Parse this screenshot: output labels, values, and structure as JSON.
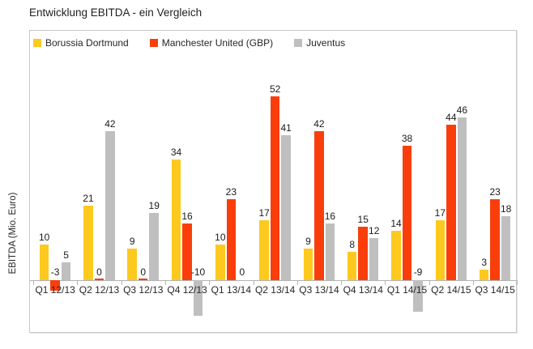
{
  "title": "Entwicklung EBITDA - ein Vergleich",
  "chart_data": {
    "type": "bar",
    "title": "Entwicklung EBITDA - ein Vergleich",
    "xlabel": "",
    "ylabel": "EBITDA (Mio. Euro)",
    "categories": [
      "Q1 12/13",
      "Q2 12/13",
      "Q3 12/13",
      "Q4 12/13",
      "Q1 13/14",
      "Q2 13/14",
      "Q3 13/14",
      "Q4 13/14",
      "Q1 14/15",
      "Q2 14/15",
      "Q3 14/15"
    ],
    "series": [
      {
        "name": "Borussia Dortmund",
        "color": "#fdc91e",
        "values": [
          10,
          21,
          9,
          34,
          10,
          17,
          9,
          8,
          14,
          17,
          3
        ]
      },
      {
        "name": "Manchester United (GBP)",
        "color": "#f93e0c",
        "values": [
          -3,
          0,
          0,
          16,
          23,
          52,
          42,
          15,
          38,
          44,
          23
        ]
      },
      {
        "name": "Juventus",
        "color": "#bfbfbf",
        "values": [
          5,
          42,
          19,
          -10,
          0,
          41,
          16,
          12,
          -9,
          46,
          18
        ]
      }
    ],
    "value_labels": [
      [
        "10",
        "21",
        "9",
        "34",
        "10",
        "17",
        "9",
        "8",
        "14",
        "17",
        "3"
      ],
      [
        "-3",
        "0",
        "0",
        "16",
        "23",
        "52",
        "42",
        "15",
        "38",
        "44",
        "23"
      ],
      [
        "5",
        "42",
        "19",
        "-10",
        "0",
        "41",
        "16",
        "12",
        "-9",
        "46",
        "18"
      ]
    ],
    "ylim": [
      -15,
      60
    ],
    "grid": false,
    "legend_position": "top-left",
    "axis_color": "#b3b3b3",
    "text_color": "#262626"
  }
}
